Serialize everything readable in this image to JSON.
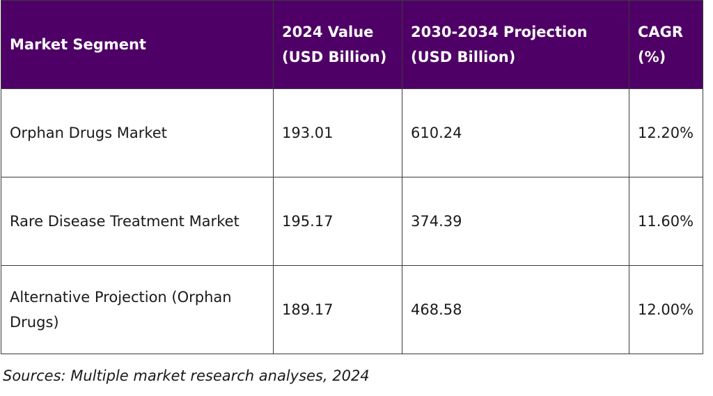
{
  "table": {
    "header": [
      "Market Segment",
      "2024 Value (USD Billion)",
      "2030-2034 Projection (USD Billion)",
      "CAGR (%)"
    ],
    "rows": [
      [
        "Orphan Drugs Market",
        "193.01",
        "610.24",
        "12.20%"
      ],
      [
        "Rare Disease Treatment Market",
        "195.17",
        "374.39",
        "11.60%"
      ],
      [
        "Alternative Projection (Orphan Drugs)",
        "189.17",
        "468.58",
        "12.00%"
      ]
    ]
  },
  "caption": "Sources: Multiple market research analyses, 2024"
}
